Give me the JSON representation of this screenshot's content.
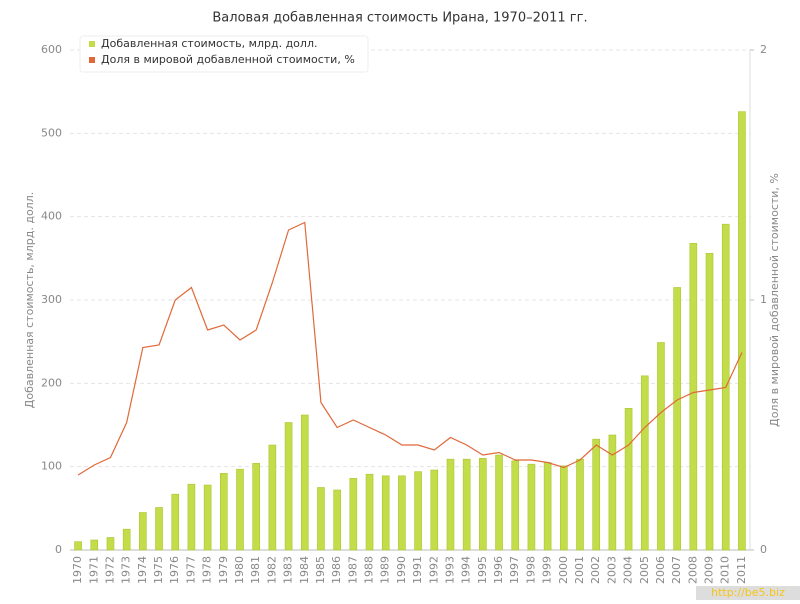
{
  "chart_data": {
    "type": "bar-line",
    "title": "Валовая добавленная стоимость Ирана, 1970–2011 гг.",
    "y_label": "Добавленная стоимость, млрд. долл.",
    "y2_label": "Доля в мировой добавленной стоимости, %",
    "watermark": "http://be5.biz",
    "categories": [
      "1970",
      "1971",
      "1972",
      "1973",
      "1974",
      "1975",
      "1976",
      "1977",
      "1978",
      "1979",
      "1980",
      "1981",
      "1982",
      "1983",
      "1984",
      "1985",
      "1986",
      "1987",
      "1988",
      "1989",
      "1990",
      "1991",
      "1992",
      "1993",
      "1994",
      "1995",
      "1996",
      "1997",
      "1998",
      "1999",
      "2000",
      "2001",
      "2002",
      "2003",
      "2004",
      "2005",
      "2006",
      "2007",
      "2008",
      "2009",
      "2010",
      "2011"
    ],
    "series": [
      {
        "name": "Добавленная стоимость, млрд. долл.",
        "type": "bar",
        "color": "#c3dd4a",
        "values": [
          10,
          12,
          15,
          25,
          45,
          51,
          67,
          79,
          78,
          92,
          97,
          104,
          126,
          153,
          162,
          75,
          72,
          86,
          91,
          89,
          89,
          94,
          96,
          109,
          109,
          110,
          114,
          107,
          103,
          105,
          101,
          109,
          133,
          138,
          170,
          209,
          249,
          315,
          368,
          356,
          391,
          526
        ]
      },
      {
        "name": "Доля в мировой добавленной стоимости, %",
        "type": "line",
        "axis": "y2",
        "color": "#e0693a",
        "values": [
          0.3,
          0.34,
          0.37,
          0.51,
          0.81,
          0.82,
          1.0,
          1.05,
          0.88,
          0.9,
          0.84,
          0.88,
          1.07,
          1.28,
          1.31,
          0.59,
          0.49,
          0.52,
          0.49,
          0.46,
          0.42,
          0.42,
          0.4,
          0.45,
          0.42,
          0.38,
          0.39,
          0.36,
          0.36,
          0.35,
          0.33,
          0.36,
          0.42,
          0.38,
          0.42,
          0.49,
          0.55,
          0.6,
          0.63,
          0.64,
          0.65,
          0.79
        ]
      }
    ],
    "ylim": [
      0,
      600
    ],
    "yticks": [
      0,
      100,
      200,
      300,
      400,
      500,
      600
    ],
    "y2lim": [
      0,
      2
    ],
    "y2ticks": [
      0,
      1,
      2
    ],
    "grid": true,
    "legend": "top-left"
  }
}
